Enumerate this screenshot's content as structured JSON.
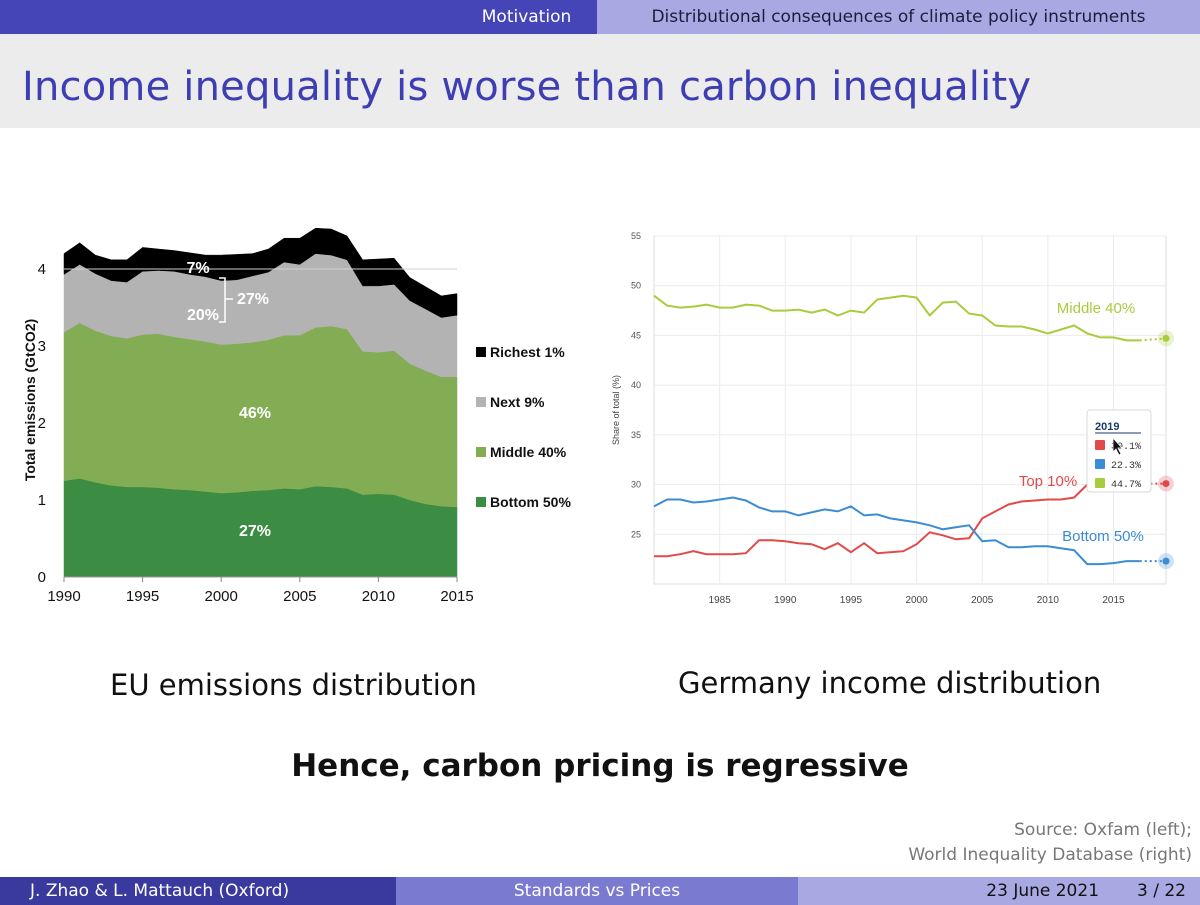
{
  "header": {
    "section": "Motivation",
    "subsection": "Distributional consequences of climate policy instruments"
  },
  "slide": {
    "title": "Income inequality is worse than carbon inequality",
    "left_caption": "EU emissions distribution",
    "right_caption": "Germany income distribution",
    "conclusion": "Hence, carbon pricing is regressive",
    "source_line1": "Source:  Oxfam (left);",
    "source_line2": "World Inequality Database (right)"
  },
  "footer": {
    "authors": "J. Zhao & L. Mattauch  (Oxford)",
    "short_title": "Standards vs Prices",
    "date": "23 June 2021",
    "page": "3 / 22"
  },
  "chart_data": [
    {
      "type": "area",
      "stacked": true,
      "ylabel": "Total  emissions (GtCO2)",
      "xlim": [
        1990,
        2015
      ],
      "ylim": [
        0,
        4.5
      ],
      "x_ticks": [
        1990,
        1995,
        2000,
        2005,
        2010,
        2015
      ],
      "y_ticks": [
        0,
        1,
        2,
        3,
        4
      ],
      "x": [
        1990,
        1991,
        1992,
        1993,
        1994,
        1995,
        1996,
        1997,
        1998,
        1999,
        2000,
        2001,
        2002,
        2003,
        2004,
        2005,
        2006,
        2007,
        2008,
        2009,
        2010,
        2011,
        2012,
        2013,
        2014,
        2015
      ],
      "series": [
        {
          "name": "Bottom 50%",
          "color": "#3c8c44",
          "label": "27%",
          "values": [
            1.25,
            1.28,
            1.23,
            1.19,
            1.17,
            1.17,
            1.16,
            1.14,
            1.13,
            1.11,
            1.09,
            1.1,
            1.12,
            1.13,
            1.15,
            1.14,
            1.18,
            1.17,
            1.15,
            1.07,
            1.08,
            1.07,
            1.0,
            0.95,
            0.92,
            0.91
          ]
        },
        {
          "name": "Middle 40%",
          "color": "#82ad54",
          "label": "46%",
          "values": [
            1.93,
            2.02,
            1.97,
            1.94,
            1.93,
            1.98,
            2.0,
            1.98,
            1.96,
            1.95,
            1.93,
            1.93,
            1.93,
            1.95,
            1.99,
            2.0,
            2.06,
            2.09,
            2.07,
            1.86,
            1.84,
            1.87,
            1.77,
            1.73,
            1.68,
            1.69
          ]
        },
        {
          "name": "Next 9%",
          "color": "#b3b3b3",
          "label": "20%",
          "values": [
            0.75,
            0.76,
            0.74,
            0.72,
            0.73,
            0.82,
            0.82,
            0.85,
            0.84,
            0.84,
            0.83,
            0.83,
            0.86,
            0.88,
            0.95,
            0.92,
            0.96,
            0.92,
            0.9,
            0.85,
            0.86,
            0.86,
            0.82,
            0.8,
            0.77,
            0.8
          ]
        },
        {
          "name": "Richest 1%",
          "color": "#000000",
          "label": "7%",
          "values": [
            0.27,
            0.28,
            0.24,
            0.27,
            0.29,
            0.31,
            0.28,
            0.27,
            0.28,
            0.28,
            0.33,
            0.33,
            0.29,
            0.3,
            0.31,
            0.34,
            0.33,
            0.34,
            0.31,
            0.34,
            0.35,
            0.34,
            0.3,
            0.29,
            0.28,
            0.28
          ]
        }
      ],
      "bracket_label": "27%"
    },
    {
      "type": "line",
      "ylabel": "Share of total (%)",
      "xlim": [
        1980,
        2019
      ],
      "ylim": [
        20,
        55
      ],
      "x_ticks": [
        1985,
        1990,
        1995,
        2000,
        2005,
        2010,
        2015
      ],
      "y_ticks": [
        25,
        30,
        35,
        40,
        45,
        50,
        55
      ],
      "series": [
        {
          "name": "Middle 40%",
          "color": "#a8cc3c",
          "points": [
            [
              1980,
              49.0
            ],
            [
              1981,
              48.0
            ],
            [
              1982,
              47.8
            ],
            [
              1983,
              47.9
            ],
            [
              1984,
              48.1
            ],
            [
              1985,
              47.8
            ],
            [
              1986,
              47.8
            ],
            [
              1987,
              48.1
            ],
            [
              1988,
              48.0
            ],
            [
              1989,
              47.5
            ],
            [
              1990,
              47.5
            ],
            [
              1991,
              47.6
            ],
            [
              1992,
              47.3
            ],
            [
              1993,
              47.6
            ],
            [
              1994,
              47.0
            ],
            [
              1995,
              47.5
            ],
            [
              1996,
              47.3
            ],
            [
              1997,
              48.6
            ],
            [
              1998,
              48.8
            ],
            [
              1999,
              49.0
            ],
            [
              2000,
              48.8
            ],
            [
              2001,
              47.0
            ],
            [
              2002,
              48.3
            ],
            [
              2003,
              48.4
            ],
            [
              2004,
              47.2
            ],
            [
              2005,
              47.0
            ],
            [
              2006,
              46.0
            ],
            [
              2007,
              45.9
            ],
            [
              2008,
              45.9
            ],
            [
              2009,
              45.6
            ],
            [
              2010,
              45.2
            ],
            [
              2011,
              45.6
            ],
            [
              2012,
              46.0
            ],
            [
              2013,
              45.2
            ],
            [
              2014,
              44.8
            ],
            [
              2015,
              44.8
            ],
            [
              2016,
              44.5
            ],
            [
              2017,
              44.5
            ]
          ],
          "dotted_to": [
            2019,
            44.7
          ]
        },
        {
          "name": "Top 10%",
          "color": "#e24a4a",
          "points": [
            [
              1980,
              22.8
            ],
            [
              1981,
              22.8
            ],
            [
              1982,
              23.0
            ],
            [
              1983,
              23.3
            ],
            [
              1984,
              23.0
            ],
            [
              1985,
              23.0
            ],
            [
              1986,
              23.0
            ],
            [
              1987,
              23.1
            ],
            [
              1988,
              24.4
            ],
            [
              1989,
              24.4
            ],
            [
              1990,
              24.3
            ],
            [
              1991,
              24.1
            ],
            [
              1992,
              24.0
            ],
            [
              1993,
              23.5
            ],
            [
              1994,
              24.1
            ],
            [
              1995,
              23.2
            ],
            [
              1996,
              24.1
            ],
            [
              1997,
              23.1
            ],
            [
              1998,
              23.2
            ],
            [
              1999,
              23.3
            ],
            [
              2000,
              24.0
            ],
            [
              2001,
              25.2
            ],
            [
              2002,
              24.9
            ],
            [
              2003,
              24.5
            ],
            [
              2004,
              24.6
            ],
            [
              2005,
              26.6
            ],
            [
              2006,
              27.3
            ],
            [
              2007,
              28.0
            ],
            [
              2008,
              28.3
            ],
            [
              2009,
              28.4
            ],
            [
              2010,
              28.5
            ],
            [
              2011,
              28.5
            ],
            [
              2012,
              28.7
            ],
            [
              2013,
              30.0
            ],
            [
              2014,
              30.1
            ]
          ],
          "dotted_to": [
            2019,
            30.1
          ]
        },
        {
          "name": "Bottom 50%",
          "color": "#3c8cd4",
          "points": [
            [
              1980,
              27.8
            ],
            [
              1981,
              28.5
            ],
            [
              1982,
              28.5
            ],
            [
              1983,
              28.2
            ],
            [
              1984,
              28.3
            ],
            [
              1985,
              28.5
            ],
            [
              1986,
              28.7
            ],
            [
              1987,
              28.4
            ],
            [
              1988,
              27.7
            ],
            [
              1989,
              27.3
            ],
            [
              1990,
              27.3
            ],
            [
              1991,
              26.9
            ],
            [
              1992,
              27.2
            ],
            [
              1993,
              27.5
            ],
            [
              1994,
              27.3
            ],
            [
              1995,
              27.8
            ],
            [
              1996,
              26.9
            ],
            [
              1997,
              27.0
            ],
            [
              1998,
              26.6
            ],
            [
              1999,
              26.4
            ],
            [
              2000,
              26.2
            ],
            [
              2001,
              25.9
            ],
            [
              2002,
              25.5
            ],
            [
              2003,
              25.7
            ],
            [
              2004,
              25.9
            ],
            [
              2005,
              24.3
            ],
            [
              2006,
              24.4
            ],
            [
              2007,
              23.7
            ],
            [
              2008,
              23.7
            ],
            [
              2009,
              23.8
            ],
            [
              2010,
              23.8
            ],
            [
              2011,
              23.6
            ],
            [
              2012,
              23.4
            ],
            [
              2013,
              22.0
            ],
            [
              2014,
              22.0
            ],
            [
              2015,
              22.1
            ],
            [
              2016,
              22.3
            ],
            [
              2017,
              22.3
            ]
          ],
          "dotted_to": [
            2019,
            22.3
          ]
        }
      ],
      "tooltip": {
        "year": "2019",
        "rows": [
          {
            "color": "#e24a4a",
            "value": "30.1%"
          },
          {
            "color": "#3c8cd4",
            "value": "22.3%"
          },
          {
            "color": "#a8cc3c",
            "value": "44.7%"
          }
        ]
      }
    }
  ]
}
